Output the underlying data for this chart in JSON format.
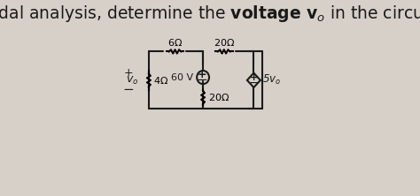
{
  "title": "Using nodal analysis, determine the voltage vₒ in the circuit below.",
  "bg_color": "#d6d0c8",
  "text_color": "#1a1a1a",
  "title_fontsize": 13.5,
  "fig_width": 4.74,
  "fig_height": 2.22,
  "dpi": 100
}
